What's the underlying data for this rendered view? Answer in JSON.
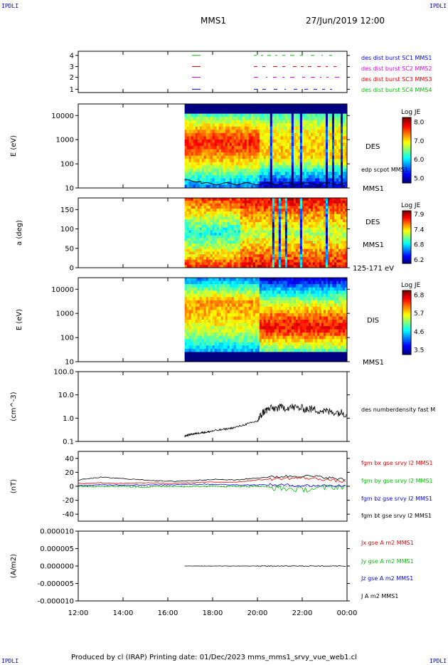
{
  "header": {
    "corner_tag": "IPDLI",
    "spacecraft": "MMS1",
    "datetime": "27/Jun/2019 12:00"
  },
  "footer": {
    "text": "Produced by cl (IRAP)   Printing date: 01/Dec/2023   mms_mms1_srvy_vue_web1.cl"
  },
  "colors": {
    "red": "#e00000",
    "green": "#00c000",
    "blue": "#0000e0",
    "magenta": "#e000e0",
    "black": "#000000"
  },
  "chart_data": [
    {
      "type": "line",
      "panel": "burst-availability",
      "yticks": [
        "1",
        "2",
        "3",
        "4"
      ],
      "legend": [
        {
          "label": "des dist burst SC1 MMS1",
          "color": "#0000e0"
        },
        {
          "label": "des dist burst SC2 MMS2",
          "color": "#e000e0"
        },
        {
          "label": "des dist burst SC3 MMS3",
          "color": "#e00000"
        },
        {
          "label": "des dist burst SC4 MMS4",
          "color": "#00c000"
        }
      ]
    },
    {
      "type": "heatmap",
      "panel": "des-energy",
      "ylabel": "E (eV)",
      "yticks": [
        "10",
        "100",
        "1000",
        "10000"
      ],
      "ylim": [
        10,
        30000
      ],
      "yscale": "log",
      "side_labels": [
        "DES",
        "edp scpot MMS1",
        "MMS1"
      ],
      "colorbar": {
        "title": "Log JE",
        "ticks": [
          "8.0",
          "7.0",
          "6.0",
          "5.0"
        ],
        "range": [
          5.0,
          8.2
        ]
      },
      "data_start_hour": 16.75
    },
    {
      "type": "heatmap",
      "panel": "des-pitch",
      "ylabel": "a (deg)",
      "yticks": [
        "0",
        "50",
        "100",
        "150"
      ],
      "ylim": [
        0,
        180
      ],
      "side_labels": [
        "DES",
        "MMS1",
        "125-171 eV"
      ],
      "colorbar": {
        "title": "Log JE",
        "ticks": [
          "7.9",
          "7.4",
          "6.8",
          "6.2"
        ],
        "range": [
          6.2,
          8.0
        ]
      },
      "data_start_hour": 16.75
    },
    {
      "type": "heatmap",
      "panel": "dis-energy",
      "ylabel": "E (eV)",
      "yticks": [
        "10",
        "100",
        "1000",
        "10000"
      ],
      "ylim": [
        10,
        30000
      ],
      "yscale": "log",
      "side_labels": [
        "DIS",
        "MMS1"
      ],
      "colorbar": {
        "title": "Log JE",
        "ticks": [
          "6.8",
          "5.7",
          "4.6",
          "3.5"
        ],
        "range": [
          3.5,
          7.0
        ]
      },
      "data_start_hour": 16.75
    },
    {
      "type": "line",
      "panel": "density",
      "ylabel": "(cm^-3)",
      "yticks": [
        "0.1",
        "1.0",
        "10.0",
        "100.0"
      ],
      "ylim": [
        0.1,
        100
      ],
      "yscale": "log",
      "series": [
        {
          "name": "des numberdensity fast M",
          "color": "#000000",
          "x": [
            16.75,
            17.0,
            17.25,
            17.5,
            17.75,
            18.0,
            18.5,
            19.0,
            19.5,
            20.0,
            20.25,
            20.5,
            21.0,
            21.5,
            22.0,
            22.5,
            23.0,
            23.5,
            24.0
          ],
          "y": [
            0.17,
            0.2,
            0.22,
            0.24,
            0.25,
            0.28,
            0.33,
            0.4,
            0.55,
            0.75,
            1.8,
            2.5,
            2.8,
            3.0,
            2.6,
            2.4,
            2.0,
            1.8,
            1.6
          ]
        }
      ]
    },
    {
      "type": "line",
      "panel": "magnetic-field",
      "ylabel": "(nT)",
      "yticks": [
        "-40",
        "-20",
        "0",
        "20",
        "40"
      ],
      "ylim": [
        -50,
        50
      ],
      "series": [
        {
          "name": "fgm bx gse srvy l2 MMS1",
          "color": "#e00000",
          "x": [
            12,
            13,
            14,
            15,
            16,
            17,
            18,
            19,
            20,
            21,
            22,
            23,
            24
          ],
          "y": [
            4,
            5,
            4,
            5,
            4,
            5,
            6,
            6,
            9,
            11,
            12,
            10,
            6
          ]
        },
        {
          "name": "fgm by gse srvy l2 MMS1",
          "color": "#00c000",
          "x": [
            12,
            13,
            14,
            15,
            16,
            17,
            18,
            19,
            20,
            21,
            22,
            23,
            24
          ],
          "y": [
            0,
            0,
            0,
            -1,
            0,
            0,
            0,
            0,
            0,
            -3,
            -5,
            -2,
            0
          ]
        },
        {
          "name": "fgm bz gse srvy l2 MMS1",
          "color": "#0000e0",
          "x": [
            12,
            13,
            14,
            15,
            16,
            17,
            18,
            19,
            20,
            21,
            22,
            23,
            24
          ],
          "y": [
            1,
            2,
            2,
            2,
            2,
            3,
            3,
            2,
            2,
            2,
            1,
            1,
            1
          ]
        },
        {
          "name": "fgm bt gse srvy l2 MMS1",
          "color": "#000000",
          "x": [
            12,
            13,
            14,
            15,
            16,
            17,
            18,
            19,
            20,
            21,
            22,
            23,
            24
          ],
          "y": [
            9,
            13,
            11,
            9,
            7,
            8,
            10,
            9,
            12,
            14,
            15,
            13,
            9
          ]
        }
      ]
    },
    {
      "type": "line",
      "panel": "current-density",
      "ylabel": "(A/m2)",
      "yticks": [
        "-0.000010",
        "-0.000005",
        "0.000000",
        "0.000005",
        "0.000010"
      ],
      "ylim": [
        -1e-05,
        1e-05
      ],
      "series": [
        {
          "name": "Jx gse A m2 MMS1",
          "color": "#e00000"
        },
        {
          "name": "Jy gse A m2 MMS1",
          "color": "#00c000"
        },
        {
          "name": "Jz gse A m2 MMS1",
          "color": "#0000e0"
        },
        {
          "name": "J A m2 MMS1",
          "color": "#000000"
        }
      ]
    }
  ],
  "xaxis": {
    "ticks": [
      "12:00",
      "14:00",
      "16:00",
      "18:00",
      "20:00",
      "22:00",
      "00:00"
    ],
    "range_hours": [
      12,
      24
    ]
  }
}
